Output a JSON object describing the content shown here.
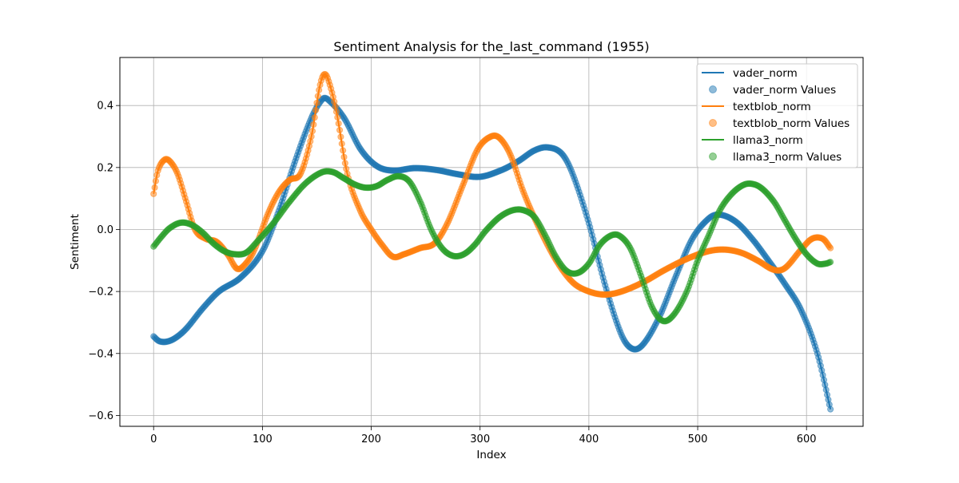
{
  "chart_data": {
    "type": "line",
    "title": "Sentiment Analysis for the_last_command (1955)",
    "xlabel": "Index",
    "ylabel": "Sentiment",
    "xlim": [
      -31,
      652
    ],
    "ylim": [
      -0.635,
      0.555
    ],
    "xticks": [
      0,
      100,
      200,
      300,
      400,
      500,
      600
    ],
    "yticks": [
      -0.6,
      -0.4,
      -0.2,
      0.0,
      0.2,
      0.4
    ],
    "ytick_labels": [
      "−0.6",
      "−0.4",
      "−0.2",
      "0.0",
      "0.2",
      "0.4"
    ],
    "grid": true,
    "legend_position": "top-right",
    "legend": [
      "vader_norm",
      "vader_norm Values",
      "textblob_norm",
      "textblob_norm Values",
      "llama3_norm",
      "llama3_norm Values"
    ],
    "x_range": [
      0,
      622
    ],
    "series": [
      {
        "name": "vader_norm",
        "color": "#1f77b4",
        "control_points": [
          [
            0,
            -0.345
          ],
          [
            5,
            -0.36
          ],
          [
            12,
            -0.362
          ],
          [
            20,
            -0.35
          ],
          [
            30,
            -0.32
          ],
          [
            45,
            -0.255
          ],
          [
            60,
            -0.2
          ],
          [
            80,
            -0.155
          ],
          [
            100,
            -0.07
          ],
          [
            115,
            0.06
          ],
          [
            130,
            0.22
          ],
          [
            145,
            0.36
          ],
          [
            155,
            0.42
          ],
          [
            160,
            0.42
          ],
          [
            175,
            0.36
          ],
          [
            190,
            0.26
          ],
          [
            205,
            0.205
          ],
          [
            220,
            0.19
          ],
          [
            240,
            0.198
          ],
          [
            260,
            0.192
          ],
          [
            280,
            0.178
          ],
          [
            300,
            0.17
          ],
          [
            320,
            0.192
          ],
          [
            335,
            0.22
          ],
          [
            350,
            0.255
          ],
          [
            362,
            0.265
          ],
          [
            375,
            0.245
          ],
          [
            385,
            0.18
          ],
          [
            400,
            0.02
          ],
          [
            415,
            -0.18
          ],
          [
            430,
            -0.34
          ],
          [
            440,
            -0.385
          ],
          [
            450,
            -0.37
          ],
          [
            465,
            -0.28
          ],
          [
            480,
            -0.15
          ],
          [
            495,
            -0.03
          ],
          [
            510,
            0.035
          ],
          [
            520,
            0.048
          ],
          [
            535,
            0.025
          ],
          [
            550,
            -0.03
          ],
          [
            565,
            -0.1
          ],
          [
            580,
            -0.175
          ],
          [
            595,
            -0.26
          ],
          [
            610,
            -0.4
          ],
          [
            622,
            -0.58
          ]
        ]
      },
      {
        "name": "textblob_norm",
        "color": "#ff7f0e",
        "control_points": [
          [
            0,
            0.115
          ],
          [
            4,
            0.19
          ],
          [
            10,
            0.225
          ],
          [
            15,
            0.22
          ],
          [
            22,
            0.18
          ],
          [
            30,
            0.09
          ],
          [
            38,
            0.0
          ],
          [
            48,
            -0.03
          ],
          [
            58,
            -0.04
          ],
          [
            68,
            -0.08
          ],
          [
            76,
            -0.125
          ],
          [
            82,
            -0.12
          ],
          [
            92,
            -0.07
          ],
          [
            105,
            0.05
          ],
          [
            115,
            0.12
          ],
          [
            125,
            0.16
          ],
          [
            135,
            0.18
          ],
          [
            145,
            0.3
          ],
          [
            152,
            0.45
          ],
          [
            156,
            0.498
          ],
          [
            160,
            0.488
          ],
          [
            168,
            0.38
          ],
          [
            178,
            0.18
          ],
          [
            190,
            0.06
          ],
          [
            200,
            0.0
          ],
          [
            210,
            -0.05
          ],
          [
            220,
            -0.088
          ],
          [
            230,
            -0.08
          ],
          [
            245,
            -0.06
          ],
          [
            258,
            -0.045
          ],
          [
            270,
            0.02
          ],
          [
            285,
            0.15
          ],
          [
            298,
            0.26
          ],
          [
            310,
            0.3
          ],
          [
            318,
            0.295
          ],
          [
            328,
            0.24
          ],
          [
            340,
            0.12
          ],
          [
            355,
            0.0
          ],
          [
            370,
            -0.1
          ],
          [
            385,
            -0.17
          ],
          [
            400,
            -0.2
          ],
          [
            415,
            -0.21
          ],
          [
            430,
            -0.2
          ],
          [
            450,
            -0.17
          ],
          [
            470,
            -0.13
          ],
          [
            490,
            -0.095
          ],
          [
            510,
            -0.07
          ],
          [
            525,
            -0.065
          ],
          [
            540,
            -0.075
          ],
          [
            555,
            -0.1
          ],
          [
            570,
            -0.13
          ],
          [
            580,
            -0.125
          ],
          [
            595,
            -0.065
          ],
          [
            605,
            -0.03
          ],
          [
            615,
            -0.03
          ],
          [
            622,
            -0.06
          ]
        ]
      },
      {
        "name": "llama3_norm",
        "color": "#2ca02c",
        "control_points": [
          [
            0,
            -0.055
          ],
          [
            8,
            -0.02
          ],
          [
            15,
            0.005
          ],
          [
            25,
            0.022
          ],
          [
            35,
            0.015
          ],
          [
            45,
            -0.01
          ],
          [
            55,
            -0.045
          ],
          [
            65,
            -0.07
          ],
          [
            75,
            -0.08
          ],
          [
            85,
            -0.075
          ],
          [
            95,
            -0.04
          ],
          [
            110,
            0.02
          ],
          [
            125,
            0.09
          ],
          [
            140,
            0.15
          ],
          [
            155,
            0.185
          ],
          [
            165,
            0.185
          ],
          [
            175,
            0.165
          ],
          [
            185,
            0.145
          ],
          [
            195,
            0.135
          ],
          [
            205,
            0.14
          ],
          [
            215,
            0.16
          ],
          [
            225,
            0.172
          ],
          [
            235,
            0.155
          ],
          [
            245,
            0.09
          ],
          [
            255,
            0.0
          ],
          [
            265,
            -0.06
          ],
          [
            275,
            -0.085
          ],
          [
            285,
            -0.08
          ],
          [
            295,
            -0.05
          ],
          [
            305,
            -0.005
          ],
          [
            318,
            0.04
          ],
          [
            330,
            0.062
          ],
          [
            340,
            0.062
          ],
          [
            350,
            0.04
          ],
          [
            360,
            -0.02
          ],
          [
            370,
            -0.09
          ],
          [
            380,
            -0.135
          ],
          [
            390,
            -0.14
          ],
          [
            400,
            -0.11
          ],
          [
            410,
            -0.05
          ],
          [
            420,
            -0.02
          ],
          [
            428,
            -0.02
          ],
          [
            438,
            -0.06
          ],
          [
            448,
            -0.15
          ],
          [
            458,
            -0.25
          ],
          [
            468,
            -0.295
          ],
          [
            478,
            -0.275
          ],
          [
            490,
            -0.2
          ],
          [
            500,
            -0.1
          ],
          [
            510,
            -0.02
          ],
          [
            520,
            0.06
          ],
          [
            530,
            0.11
          ],
          [
            540,
            0.14
          ],
          [
            548,
            0.148
          ],
          [
            558,
            0.135
          ],
          [
            570,
            0.09
          ],
          [
            580,
            0.03
          ],
          [
            590,
            -0.03
          ],
          [
            600,
            -0.08
          ],
          [
            610,
            -0.11
          ],
          [
            618,
            -0.11
          ],
          [
            622,
            -0.105
          ]
        ]
      }
    ]
  }
}
